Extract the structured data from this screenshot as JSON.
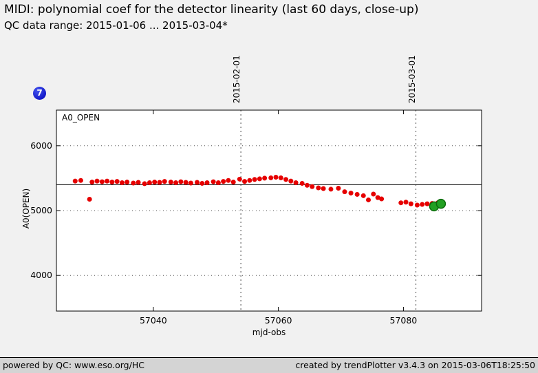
{
  "header": {
    "title": "MIDI: polynomial coef for the detector linearity (last 60 days, close-up)",
    "subtitle": "QC data range: 2015-01-06 ... 2015-03-04*"
  },
  "badge": {
    "count": "7",
    "color": "#0000bb"
  },
  "footer": {
    "left": "powered by QC: www.eso.org/HC",
    "right": "created by trendPlotter v3.4.3 on 2015-03-06T18:25:50"
  },
  "chart_data": {
    "type": "scatter",
    "series_label": "A0_OPEN",
    "xlabel": "mjd-obs",
    "ylabel": "A0(OPEN)",
    "xlim": [
      57024.5,
      57092.5
    ],
    "ylim": [
      3450,
      6550
    ],
    "x_ticks": [
      57040,
      57060,
      57080
    ],
    "y_ticks": [
      4000,
      5000,
      6000
    ],
    "grid": "dotted horizontal lines at y ticks",
    "legend_position": "none",
    "mean_line_value": 5400,
    "date_markers": [
      {
        "label": "2015-02-01",
        "mjd": 57054
      },
      {
        "label": "2015-03-01",
        "mjd": 57082
      }
    ],
    "series": [
      {
        "name": "qc-values-red",
        "color": "#e60000",
        "marker_radius": 3.5,
        "points": [
          [
            57027.5,
            5455
          ],
          [
            57028.4,
            5465
          ],
          [
            57029.8,
            5175
          ],
          [
            57030.2,
            5440
          ],
          [
            57031.0,
            5455
          ],
          [
            57031.8,
            5445
          ],
          [
            57032.6,
            5455
          ],
          [
            57033.4,
            5440
          ],
          [
            57034.2,
            5450
          ],
          [
            57035.0,
            5430
          ],
          [
            57035.8,
            5440
          ],
          [
            57036.8,
            5425
          ],
          [
            57037.6,
            5435
          ],
          [
            57038.6,
            5415
          ],
          [
            57039.4,
            5430
          ],
          [
            57040.2,
            5440
          ],
          [
            57041.0,
            5435
          ],
          [
            57041.8,
            5450
          ],
          [
            57042.8,
            5440
          ],
          [
            57043.6,
            5430
          ],
          [
            57044.4,
            5445
          ],
          [
            57045.2,
            5435
          ],
          [
            57046.0,
            5425
          ],
          [
            57047.0,
            5435
          ],
          [
            57047.8,
            5420
          ],
          [
            57048.6,
            5430
          ],
          [
            57049.6,
            5445
          ],
          [
            57050.4,
            5430
          ],
          [
            57051.2,
            5450
          ],
          [
            57052.0,
            5465
          ],
          [
            57052.8,
            5440
          ],
          [
            57053.8,
            5485
          ],
          [
            57054.6,
            5450
          ],
          [
            57055.4,
            5465
          ],
          [
            57056.2,
            5480
          ],
          [
            57057.0,
            5490
          ],
          [
            57057.8,
            5500
          ],
          [
            57058.8,
            5505
          ],
          [
            57059.6,
            5515
          ],
          [
            57060.4,
            5505
          ],
          [
            57061.2,
            5480
          ],
          [
            57062.0,
            5455
          ],
          [
            57062.8,
            5430
          ],
          [
            57063.8,
            5420
          ],
          [
            57064.6,
            5390
          ],
          [
            57065.4,
            5370
          ],
          [
            57066.4,
            5350
          ],
          [
            57067.2,
            5340
          ],
          [
            57068.4,
            5330
          ],
          [
            57069.6,
            5345
          ],
          [
            57070.6,
            5290
          ],
          [
            57071.6,
            5270
          ],
          [
            57072.6,
            5250
          ],
          [
            57073.6,
            5230
          ],
          [
            57074.4,
            5165
          ],
          [
            57075.2,
            5255
          ],
          [
            57075.9,
            5200
          ],
          [
            57076.5,
            5180
          ],
          [
            57079.6,
            5120
          ],
          [
            57080.4,
            5130
          ],
          [
            57081.2,
            5105
          ],
          [
            57082.2,
            5085
          ],
          [
            57083.0,
            5095
          ],
          [
            57083.8,
            5105
          ],
          [
            57084.6,
            5110
          ],
          [
            57085.5,
            5120
          ],
          [
            57086.1,
            5100
          ]
        ]
      },
      {
        "name": "latest-values-green",
        "color": "#22a022",
        "edge_color": "#0b6b0b",
        "marker_radius": 6.5,
        "points": [
          [
            57084.9,
            5065
          ],
          [
            57086.0,
            5105
          ]
        ]
      }
    ]
  }
}
